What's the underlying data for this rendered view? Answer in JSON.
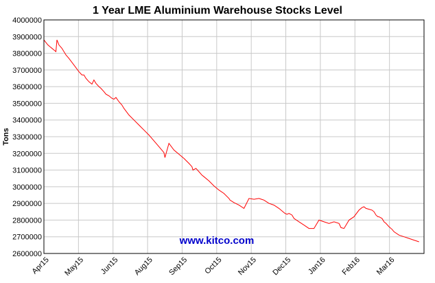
{
  "chart_data": {
    "type": "line",
    "title": "1 Year LME Aluminium Warehouse Stocks Level",
    "ylabel": "Tons",
    "xlabel": "",
    "ylim": [
      2600000,
      4000000
    ],
    "y_ticks": [
      2600000,
      2700000,
      2800000,
      2900000,
      3000000,
      3100000,
      3200000,
      3300000,
      3400000,
      3500000,
      3600000,
      3700000,
      3800000,
      3900000,
      4000000
    ],
    "x_ticks": [
      "Apr15",
      "May15",
      "Jun15",
      "Aug15",
      "Sep15",
      "Oct15",
      "Nov15",
      "Dec15",
      "Jan16",
      "Feb16",
      "Mar16"
    ],
    "grid": true,
    "line_color": "#ff0000",
    "series": [
      {
        "x": [
          0,
          2,
          4,
          6,
          8,
          10,
          12,
          13,
          15,
          18,
          22,
          25,
          30,
          35,
          38,
          40,
          42,
          45,
          48,
          50,
          52,
          55,
          57,
          60,
          62,
          65,
          68,
          70,
          72,
          75,
          78,
          80,
          85,
          90,
          95,
          100,
          105,
          110,
          115,
          120,
          121,
          125,
          130,
          135,
          140,
          145,
          148,
          149,
          152,
          155,
          158,
          160,
          165,
          170,
          175,
          180,
          185,
          186,
          190,
          195,
          200,
          205,
          210,
          215,
          220,
          225,
          230,
          235,
          240,
          241,
          243,
          245,
          248,
          250,
          255,
          260,
          265,
          270,
          275,
          280,
          285,
          290,
          295,
          297,
          300,
          305,
          310,
          315,
          318,
          320,
          322,
          325,
          328,
          330,
          332,
          334,
          335,
          338,
          340,
          342,
          345,
          348,
          350,
          355,
          360,
          365,
          370,
          375
        ],
        "y": [
          3880000,
          3865000,
          3850000,
          3840000,
          3830000,
          3820000,
          3810000,
          3880000,
          3850000,
          3830000,
          3790000,
          3770000,
          3730000,
          3690000,
          3670000,
          3670000,
          3650000,
          3630000,
          3615000,
          3640000,
          3620000,
          3600000,
          3590000,
          3570000,
          3555000,
          3545000,
          3530000,
          3525000,
          3535000,
          3510000,
          3490000,
          3470000,
          3430000,
          3400000,
          3370000,
          3340000,
          3310000,
          3275000,
          3240000,
          3205000,
          3175000,
          3260000,
          3220000,
          3195000,
          3170000,
          3140000,
          3120000,
          3100000,
          3110000,
          3090000,
          3070000,
          3060000,
          3035000,
          3005000,
          2980000,
          2960000,
          2930000,
          2920000,
          2905000,
          2890000,
          2870000,
          2930000,
          2925000,
          2930000,
          2920000,
          2900000,
          2890000,
          2870000,
          2845000,
          2840000,
          2835000,
          2840000,
          2830000,
          2810000,
          2790000,
          2770000,
          2750000,
          2750000,
          2800000,
          2790000,
          2780000,
          2790000,
          2780000,
          2755000,
          2750000,
          2800000,
          2820000,
          2860000,
          2875000,
          2880000,
          2870000,
          2865000,
          2860000,
          2850000,
          2830000,
          2820000,
          2820000,
          2810000,
          2790000,
          2780000,
          2760000,
          2745000,
          2730000,
          2710000,
          2700000,
          2690000,
          2680000,
          2670000
        ]
      }
    ]
  },
  "watermark": {
    "text": "www.kitco.com",
    "color": "#0000cc"
  }
}
